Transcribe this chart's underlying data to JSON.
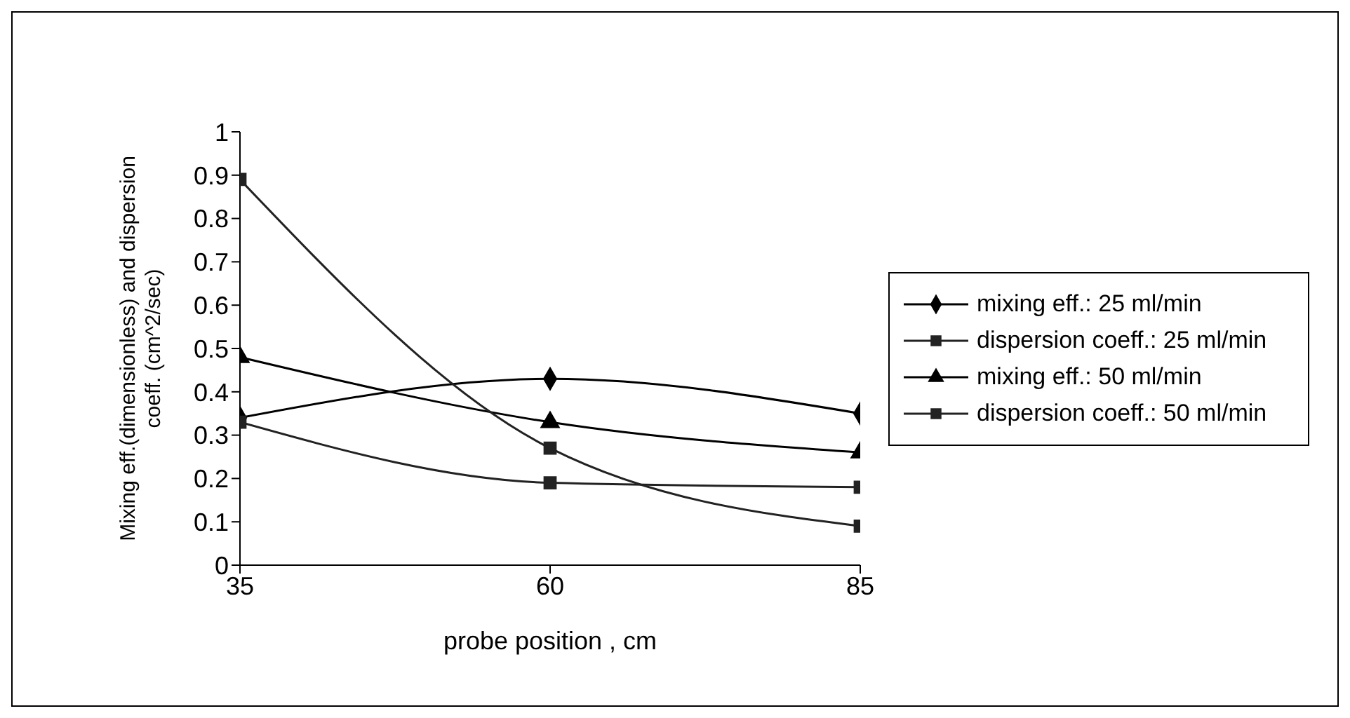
{
  "chart_data": {
    "type": "line",
    "xlabel": "probe position , cm",
    "ylabel": "Mixing eff.(dimensionless) and dispersion coeff. (cm^2/sec)",
    "x": [
      35,
      60,
      85
    ],
    "xlim": [
      35,
      85
    ],
    "xticks": [
      35,
      60,
      85
    ],
    "ylim": [
      0,
      1
    ],
    "yticks": [
      0,
      0.1,
      0.2,
      0.3,
      0.4,
      0.5,
      0.6,
      0.7,
      0.8,
      0.9,
      1
    ],
    "grid": false,
    "legend": "right",
    "line_style": "solid",
    "series": [
      {
        "name": "mixing eff.: 25 ml/min",
        "color": "#000000",
        "marker": "diamond",
        "values": [
          0.34,
          0.43,
          0.35
        ]
      },
      {
        "name": "dispersion coeff.: 25 ml/min",
        "color": "#222222",
        "marker": "square",
        "values": [
          0.33,
          0.19,
          0.18
        ]
      },
      {
        "name": "mixing eff.: 50 ml/min",
        "color": "#000000",
        "marker": "triangle",
        "values": [
          0.48,
          0.33,
          0.26
        ]
      },
      {
        "name": "dispersion coeff.: 50 ml/min",
        "color": "#222222",
        "marker": "square",
        "values": [
          0.89,
          0.27,
          0.09
        ]
      }
    ]
  }
}
